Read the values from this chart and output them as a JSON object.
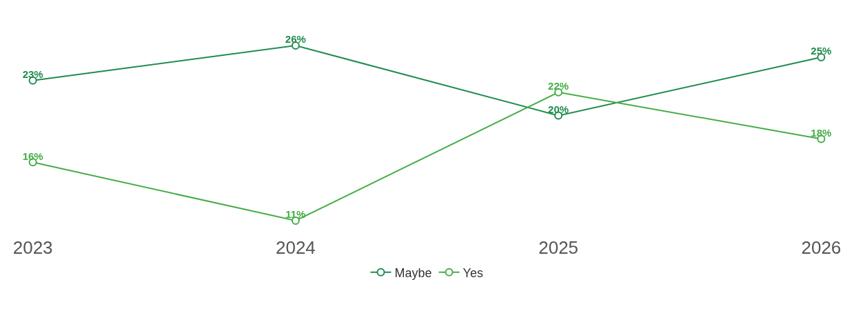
{
  "chart_data": {
    "type": "line",
    "categories": [
      "2023",
      "2024",
      "2025",
      "2026"
    ],
    "series": [
      {
        "name": "Maybe",
        "color": "#208c4e",
        "values": [
          23,
          26,
          20,
          25
        ],
        "value_labels": [
          "23%",
          "26%",
          "20%",
          "25%"
        ]
      },
      {
        "name": "Yes",
        "color": "#45ad47",
        "values": [
          16,
          11,
          22,
          18
        ],
        "value_labels": [
          "16%",
          "11%",
          "22%",
          "18%"
        ]
      }
    ],
    "tick_labels": "x",
    "grid": false,
    "data_labels": true,
    "marker": "circle",
    "line_style": "solid",
    "legend": "bottom"
  }
}
